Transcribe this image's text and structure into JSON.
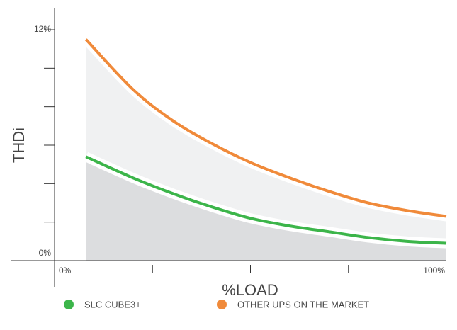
{
  "chart_data": {
    "type": "line",
    "xlabel": "%LOAD",
    "ylabel": "THDi",
    "x": [
      8,
      20,
      30,
      40,
      50,
      60,
      70,
      80,
      90,
      100
    ],
    "series": [
      {
        "name": "SLC CUBE3+",
        "color": "#3cb54a",
        "area_color": "#dcdddf",
        "values": [
          5.4,
          4.3,
          3.5,
          2.8,
          2.2,
          1.8,
          1.5,
          1.2,
          1.0,
          0.9
        ]
      },
      {
        "name": "OTHER UPS ON THE MARKET",
        "color": "#f08a3a",
        "area_color": "#f0f1f2",
        "values": [
          11.5,
          8.9,
          7.3,
          6.1,
          5.1,
          4.3,
          3.6,
          3.0,
          2.6,
          2.3
        ]
      }
    ],
    "xlim": [
      0,
      100
    ],
    "ylim": [
      0,
      12
    ],
    "xticks": [
      {
        "value": 0,
        "label": "0%"
      },
      {
        "value": 100,
        "label": "100%"
      }
    ],
    "x_minor_ticks": [
      25,
      50,
      75
    ],
    "yticks": [
      {
        "value": 0,
        "label": "0%"
      },
      {
        "value": 12,
        "label": "12%"
      }
    ],
    "y_minor_ticks": [
      2,
      4,
      6,
      8,
      10
    ],
    "legend": "bottom"
  }
}
